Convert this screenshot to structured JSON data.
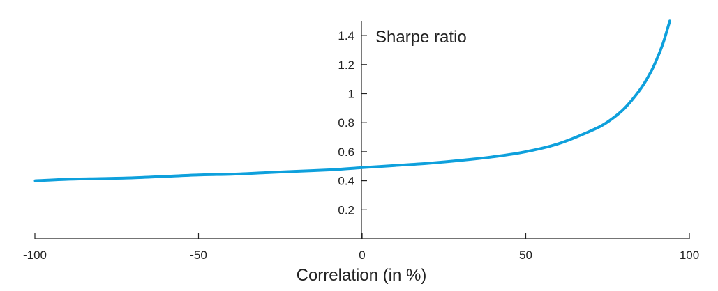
{
  "chart_data": {
    "type": "line",
    "title": "",
    "xlabel": "Correlation (in %)",
    "ylabel": "Sharpe ratio",
    "xlim": [
      -100,
      100
    ],
    "ylim": [
      0,
      1.5
    ],
    "xticks": [
      -100,
      -50,
      0,
      50,
      100
    ],
    "xtick_labels": [
      "-100",
      "-50",
      "0",
      "50",
      "100"
    ],
    "yticks": [
      0.2,
      0.4,
      0.6,
      0.8,
      1.0,
      1.2,
      1.4
    ],
    "ytick_labels": [
      "0.2",
      "0.4",
      "0.6",
      "0.8",
      "1",
      "1.2",
      "1.4"
    ],
    "grid": false,
    "color": "#0ea0dc",
    "series": [
      {
        "x": [
          -99.9,
          -90,
          -80,
          -70,
          -60,
          -50,
          -40,
          -30,
          -20,
          -10,
          0,
          10,
          20,
          30,
          40,
          50,
          60,
          70,
          75,
          80,
          85,
          88,
          90,
          92,
          94
        ],
        "values": [
          0.4,
          0.41,
          0.415,
          0.42,
          0.43,
          0.44,
          0.445,
          0.455,
          0.465,
          0.475,
          0.49,
          0.505,
          0.52,
          0.54,
          0.565,
          0.6,
          0.655,
          0.745,
          0.805,
          0.895,
          1.03,
          1.14,
          1.235,
          1.35,
          1.5
        ]
      }
    ]
  }
}
